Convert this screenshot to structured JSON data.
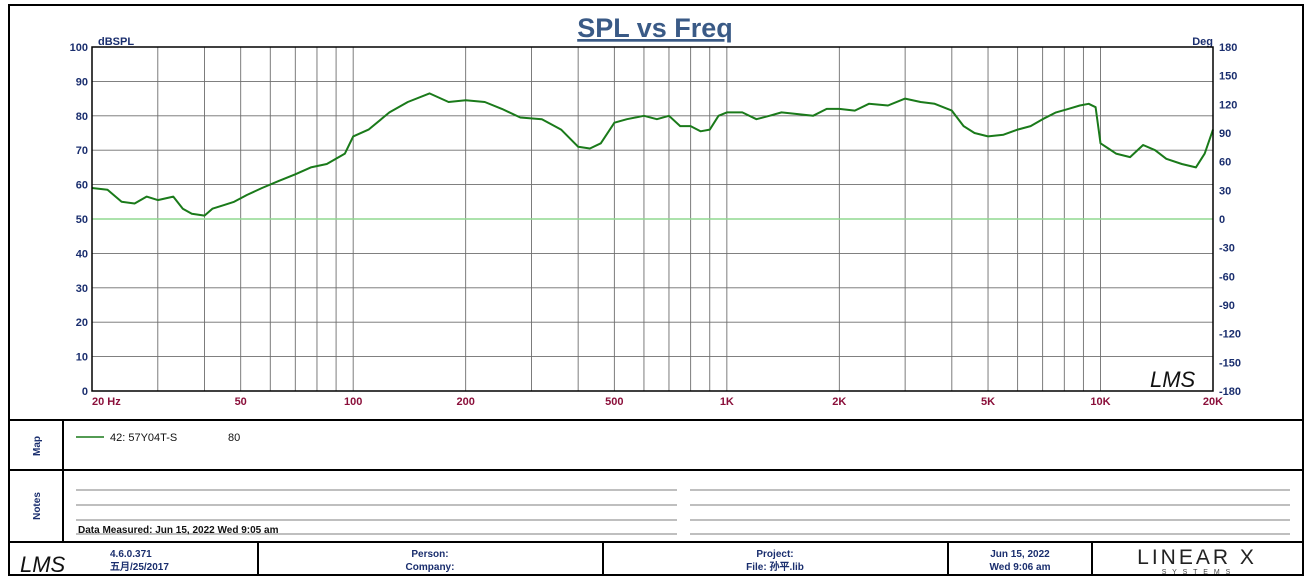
{
  "chart_data": {
    "type": "line",
    "title": "SPL vs Freq",
    "left_unit": "dBSPL",
    "right_unit": "Deg",
    "xscale": "log",
    "xlim": [
      20,
      20000
    ],
    "ylim": [
      0,
      100
    ],
    "y2lim": [
      -180,
      180
    ],
    "x_tick_labels": [
      {
        "value": 20,
        "label": "20  Hz"
      },
      {
        "value": 50,
        "label": "50"
      },
      {
        "value": 100,
        "label": "100"
      },
      {
        "value": 200,
        "label": "200"
      },
      {
        "value": 500,
        "label": "500"
      },
      {
        "value": 1000,
        "label": "1K"
      },
      {
        "value": 2000,
        "label": "2K"
      },
      {
        "value": 5000,
        "label": "5K"
      },
      {
        "value": 10000,
        "label": "10K"
      },
      {
        "value": 20000,
        "label": "20K"
      }
    ],
    "y_ticks": [
      "0",
      "10",
      "20",
      "30",
      "40",
      "50",
      "60",
      "70",
      "80",
      "90",
      "100"
    ],
    "y2_ticks": [
      "-180",
      "-150",
      "-120",
      "-90",
      "-60",
      "-30",
      "0",
      "30",
      "60",
      "90",
      "120",
      "150",
      "180"
    ],
    "grid": true,
    "reference_line": {
      "y2": 0,
      "color": "#90d890"
    },
    "series": [
      {
        "name": "42: 57Y04T-S",
        "color": "#1a7a1a",
        "x": [
          20,
          22,
          24,
          26,
          28,
          30,
          33,
          35,
          37,
          40,
          42,
          45,
          48,
          52,
          57,
          63,
          70,
          77,
          85,
          95,
          100,
          110,
          125,
          140,
          160,
          180,
          200,
          225,
          250,
          280,
          320,
          360,
          400,
          430,
          460,
          500,
          540,
          600,
          650,
          700,
          750,
          800,
          850,
          900,
          950,
          1000,
          1100,
          1200,
          1300,
          1400,
          1550,
          1700,
          1850,
          2000,
          2200,
          2400,
          2700,
          3000,
          3300,
          3600,
          4000,
          4300,
          4600,
          5000,
          5500,
          6000,
          6500,
          7000,
          7600,
          8200,
          8800,
          9300,
          9700,
          10000,
          10500,
          11000,
          12000,
          13000,
          14000,
          15000,
          16500,
          18000,
          19000,
          20000
        ],
        "y": [
          59,
          58.5,
          55,
          54.5,
          56.5,
          55.5,
          56.5,
          53,
          51.5,
          51,
          53,
          54,
          55,
          57,
          59,
          61,
          63,
          65,
          66,
          69,
          74,
          76,
          81,
          84,
          86.5,
          84,
          84.5,
          84,
          82,
          79.5,
          79,
          76,
          71,
          70.5,
          72,
          78,
          79,
          80,
          79,
          80,
          77,
          77,
          75.5,
          76,
          80,
          81,
          81,
          79,
          80,
          81,
          80.5,
          80,
          82,
          82,
          81.5,
          83.5,
          83,
          85,
          84,
          83.5,
          81.5,
          77,
          75,
          74,
          74.5,
          76,
          77,
          79,
          81,
          82,
          83,
          83.5,
          82.5,
          72,
          70.5,
          69,
          68,
          71.5,
          70,
          67.5,
          66,
          65,
          69,
          76
        ]
      }
    ]
  },
  "map_panel": {
    "title": "Map",
    "legend_name": "42: 57Y04T-S",
    "legend_value": "80"
  },
  "notes_panel": {
    "title": "Notes",
    "measured": "Data Measured: Jun 15, 2022  Wed  9:05 am"
  },
  "footer": {
    "logo": "LMS",
    "version": "4.6.0.371",
    "version_date": "五月/25/2017",
    "person_label": "Person:",
    "company_label": "Company:",
    "project_label": "Project:",
    "file_label": "File: 孙平.lib",
    "date": "Jun 15, 2022",
    "time": "Wed  9:06 am",
    "brand": "LINEAR X",
    "brand_sub": "S Y S T E M S"
  },
  "watermark": "LMS"
}
